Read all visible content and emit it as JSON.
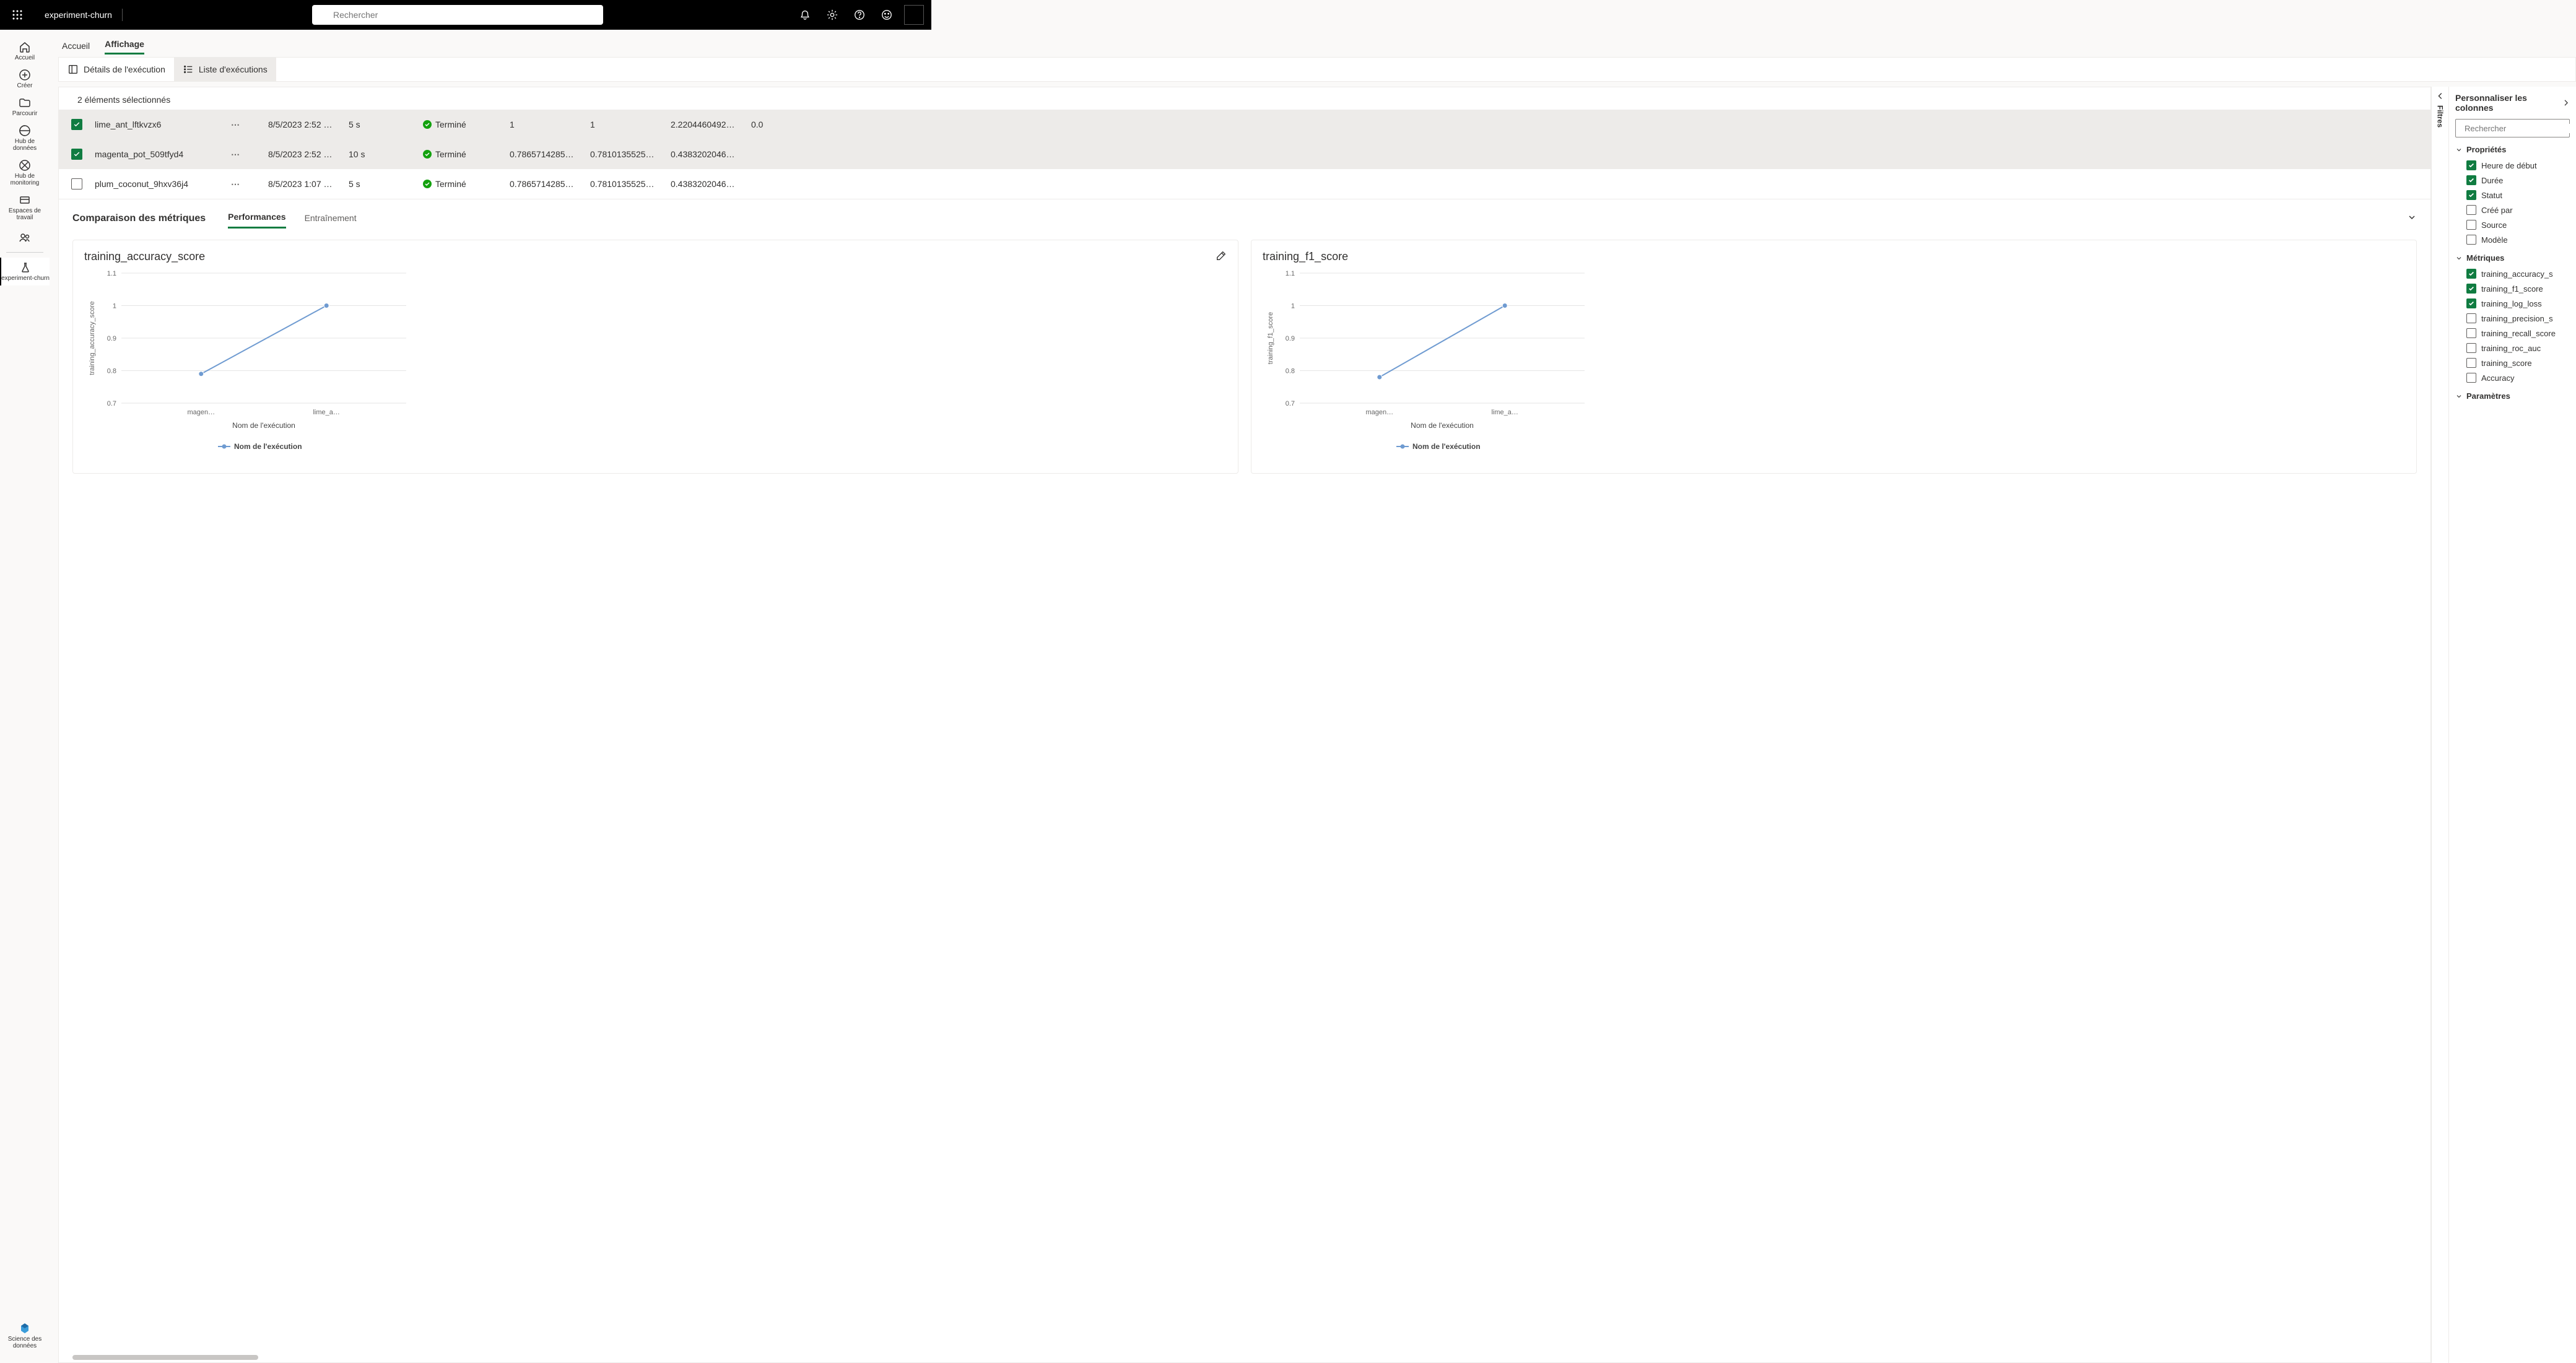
{
  "topbar": {
    "app_title": "experiment-churn",
    "search_placeholder": "Rechercher"
  },
  "leftnav": {
    "items": [
      {
        "label": "Accueil",
        "key": "home"
      },
      {
        "label": "Créer",
        "key": "create"
      },
      {
        "label": "Parcourir",
        "key": "browse"
      },
      {
        "label": "Hub de données",
        "key": "datahub"
      },
      {
        "label": "Hub de monitoring",
        "key": "monitor"
      },
      {
        "label": "Espaces de travail",
        "key": "workspaces"
      }
    ],
    "active_item": {
      "label": "experiment-churn",
      "key": "experiment"
    },
    "bottom_item": {
      "label": "Science des données",
      "key": "datascience"
    }
  },
  "tabs": {
    "home": "Accueil",
    "view": "Affichage"
  },
  "view_toggle": {
    "details": "Détails de l'exécution",
    "list": "Liste d'exécutions"
  },
  "selection_count": "2 éléments sélectionnés",
  "runs": [
    {
      "selected": true,
      "name": "lime_ant_lftkvzx6",
      "created": "8/5/2023 2:52 …",
      "duration": "5 s",
      "status": "Terminé",
      "m1": "1",
      "m2": "1",
      "m3": "2.2204460492…",
      "m4": "0.0"
    },
    {
      "selected": true,
      "name": "magenta_pot_509tfyd4",
      "created": "8/5/2023 2:52 …",
      "duration": "10 s",
      "status": "Terminé",
      "m1": "0.7865714285…",
      "m2": "0.7810135525…",
      "m3": "0.4383202046…",
      "m4": ""
    },
    {
      "selected": false,
      "name": "plum_coconut_9hxv36j4",
      "created": "8/5/2023 1:07 …",
      "duration": "5 s",
      "status": "Terminé",
      "m1": "0.7865714285…",
      "m2": "0.7810135525…",
      "m3": "0.4383202046…",
      "m4": ""
    }
  ],
  "metrics": {
    "title": "Comparaison des métriques",
    "tab_perf": "Performances",
    "tab_train": "Entraînement"
  },
  "charts": [
    {
      "title": "training_accuracy_score",
      "type": "line",
      "ylabel": "training_accuracy_score",
      "xlabel": "Nom de l'exécution",
      "legend": "Nom de l'exécution",
      "xticks": [
        "magen…",
        "lime_a…"
      ],
      "yticks": [
        "0.7",
        "0.8",
        "0.9",
        "1",
        "1.1"
      ],
      "ylim": [
        0.7,
        1.1
      ],
      "points": [
        {
          "x": 0,
          "y": 0.79
        },
        {
          "x": 1,
          "y": 1.0
        }
      ],
      "line_color": "#6f9bd1",
      "marker_color": "#6f9bd1",
      "grid_color": "#e5e5e5",
      "background": "#ffffff",
      "title_fontsize": 18,
      "label_fontsize": 11
    },
    {
      "title": "training_f1_score",
      "type": "line",
      "ylabel": "training_f1_score",
      "xlabel": "Nom de l'exécution",
      "legend": "Nom de l'exécution",
      "xticks": [
        "magen…",
        "lime_a…"
      ],
      "yticks": [
        "0.7",
        "0.8",
        "0.9",
        "1",
        "1.1"
      ],
      "ylim": [
        0.7,
        1.1
      ],
      "points": [
        {
          "x": 0,
          "y": 0.78
        },
        {
          "x": 1,
          "y": 1.0
        }
      ],
      "line_color": "#6f9bd1",
      "marker_color": "#6f9bd1",
      "grid_color": "#e5e5e5",
      "background": "#ffffff",
      "title_fontsize": 18,
      "label_fontsize": 11
    }
  ],
  "filter_strip": {
    "label": "Filtres"
  },
  "right_panel": {
    "title": "Personnaliser les colonnes",
    "search_placeholder": "Rechercher",
    "groups": [
      {
        "name": "Propriétés",
        "items": [
          {
            "label": "Heure de début",
            "checked": true
          },
          {
            "label": "Durée",
            "checked": true
          },
          {
            "label": "Statut",
            "checked": true
          },
          {
            "label": "Créé par",
            "checked": false
          },
          {
            "label": "Source",
            "checked": false
          },
          {
            "label": "Modèle",
            "checked": false
          }
        ]
      },
      {
        "name": "Métriques",
        "items": [
          {
            "label": "training_accuracy_s",
            "checked": true
          },
          {
            "label": "training_f1_score",
            "checked": true
          },
          {
            "label": "training_log_loss",
            "checked": true
          },
          {
            "label": "training_precision_s",
            "checked": false
          },
          {
            "label": "training_recall_score",
            "checked": false
          },
          {
            "label": "training_roc_auc",
            "checked": false
          },
          {
            "label": "training_score",
            "checked": false
          },
          {
            "label": "Accuracy",
            "checked": false
          }
        ]
      },
      {
        "name": "Paramètres",
        "items": []
      }
    ]
  }
}
